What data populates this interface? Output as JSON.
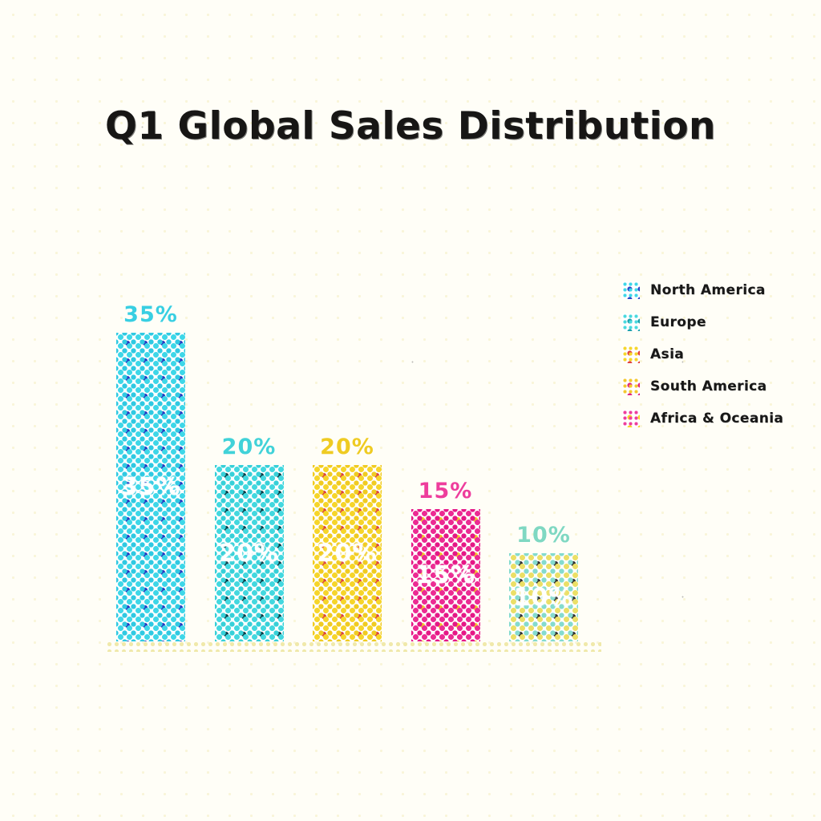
{
  "page": {
    "background": "#FFFEF7",
    "style": "cmyk-halftone-glitch-render"
  },
  "chart_data": {
    "type": "bar",
    "title": "Q1 Global Sales Distribution",
    "title_color": "#171615",
    "categories": [
      "North America",
      "Europe",
      "Asia",
      "South America",
      "Africa & Oceania"
    ],
    "values": [
      35,
      20,
      20,
      15,
      10
    ],
    "unit": "%",
    "xlabel": "",
    "ylabel": "",
    "ylim": [
      0,
      40
    ],
    "grid": false,
    "x_tick_labels": "none",
    "legend_position": "right",
    "bars": [
      {
        "category": "North America",
        "value": 35,
        "label_above": "35%",
        "label_inside": "35%",
        "dot_color": "#3ED7E8",
        "dot2_color": "#2FC9E2",
        "speck_color": "#2636C0",
        "label_color": "#38CFE2"
      },
      {
        "category": "Europe",
        "value": 20,
        "label_above": "20%",
        "label_inside": "20%",
        "dot_color": "#43D8DF",
        "dot2_color": "#36D0D8",
        "speck_color": "#0B3C46",
        "label_color": "#41D2D8"
      },
      {
        "category": "Asia",
        "value": 20,
        "label_above": "20%",
        "label_inside": "20%",
        "dot_color": "#F6D52A",
        "dot2_color": "#F0CB20",
        "speck_color": "#DC4140",
        "label_color": "#EFCB22"
      },
      {
        "category": "South America",
        "value": 15,
        "label_above": "15%",
        "label_inside": "15%",
        "dot_color": "#EC2B93",
        "dot2_color": "#E51786",
        "speck_color": "#F3CB2C",
        "label_color": "#EE3D9C"
      },
      {
        "category": "Africa & Oceania",
        "value": 10,
        "label_above": "10%",
        "label_inside": "10%",
        "dot_color": "#EBDF66",
        "dot2_color": "#84DBCE",
        "speck_color": "#303030",
        "label_color": "#7FD8C2"
      }
    ],
    "legend": {
      "text_color": "#181818",
      "entries": [
        {
          "label": "North America",
          "swatch_base": "#3ED7E8",
          "swatch_dot": "#2742C8"
        },
        {
          "label": "Europe",
          "swatch_base": "#49D9DE",
          "swatch_dot": "#18A0AC"
        },
        {
          "label": "Asia",
          "swatch_base": "#F6D62B",
          "swatch_dot": "#E0403C"
        },
        {
          "label": "South America",
          "swatch_base": "#F4C92F",
          "swatch_dot": "#E0257C"
        },
        {
          "label": "Africa & Oceania",
          "swatch_base": "#EE3D9C",
          "swatch_dot": "#F6D62B"
        }
      ]
    }
  }
}
